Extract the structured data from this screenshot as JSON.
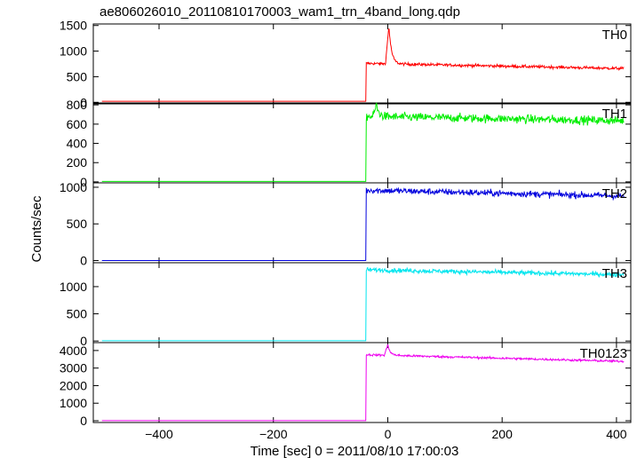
{
  "chart_data": {
    "type": "line",
    "title": "ae806026010_20110810170003_wam1_trn_4band_long.qdp",
    "xlabel": "Time [sec] 0 = 2011/08/10 17:00:03",
    "ylabel": "Counts/sec",
    "xlim": [
      -515,
      425
    ],
    "xticks": [
      -400,
      -200,
      0,
      200,
      400
    ],
    "grid": false,
    "panels": [
      {
        "name": "TH0",
        "color": "#ff0000",
        "ylim": [
          -30,
          1530
        ],
        "yticks": [
          0,
          500,
          1000,
          1500
        ],
        "baseline": 20,
        "onset": -38,
        "level_start": 760,
        "level_end": 660,
        "noise": 20,
        "peak": {
          "x": 2,
          "value": 1500
        }
      },
      {
        "name": "TH1",
        "color": "#00ee00",
        "ylim": [
          -10,
          820
        ],
        "yticks": [
          0,
          200,
          400,
          600,
          800
        ],
        "baseline": 5,
        "onset": -38,
        "level_start": 680,
        "level_end": 635,
        "noise": 32,
        "peak": {
          "x": -20,
          "value": 800
        }
      },
      {
        "name": "TH2",
        "color": "#0000dd",
        "ylim": [
          -30,
          1060
        ],
        "yticks": [
          0,
          500,
          1000
        ],
        "baseline": 0,
        "onset": -38,
        "level_start": 960,
        "level_end": 880,
        "noise": 32,
        "peak": null
      },
      {
        "name": "TH3",
        "color": "#00e5ee",
        "ylim": [
          -30,
          1440
        ],
        "yticks": [
          0,
          500,
          1000
        ],
        "baseline": 5,
        "onset": -38,
        "level_start": 1310,
        "level_end": 1220,
        "noise": 30,
        "peak": null
      },
      {
        "name": "TH0123",
        "color": "#ee00ee",
        "ylim": [
          -100,
          4450
        ],
        "yticks": [
          0,
          1000,
          2000,
          3000,
          4000
        ],
        "baseline": 5,
        "onset": -38,
        "level_start": 3760,
        "level_end": 3380,
        "noise": 45,
        "peak": {
          "x": 0,
          "value": 4350
        }
      }
    ]
  }
}
